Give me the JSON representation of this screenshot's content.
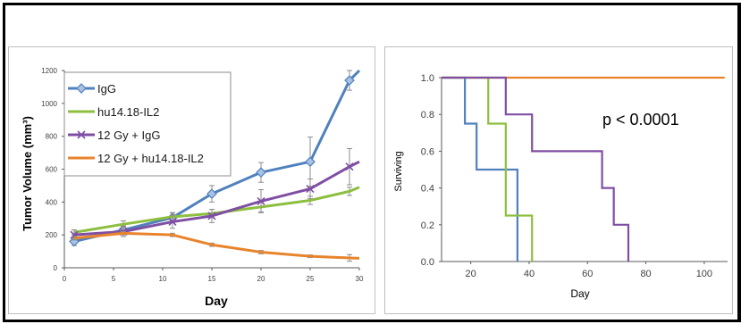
{
  "chart_data": [
    {
      "type": "line",
      "xlabel": "Day",
      "ylabel": "Tumor Volume (mm³)",
      "xlim": [
        0,
        30
      ],
      "ylim": [
        0,
        1200
      ],
      "xticks": [
        "0",
        "5",
        "10",
        "15",
        "20",
        "25",
        "30"
      ],
      "yticks": [
        "0",
        "200",
        "400",
        "600",
        "800",
        "1000",
        "1200"
      ],
      "legend_position": "top-left",
      "grid": false,
      "series": [
        {
          "name": "IgG",
          "color": "#4f81bd",
          "marker": "diamond",
          "x": [
            1,
            6,
            11,
            15,
            20,
            25,
            29,
            30
          ],
          "y": [
            160,
            230,
            305,
            450,
            580,
            645,
            1140,
            1200
          ],
          "err": [
            25,
            25,
            30,
            50,
            60,
            150,
            60,
            0
          ]
        },
        {
          "name": "hu14.18-IL2",
          "color": "#8dbf3f",
          "marker": "none",
          "x": [
            1,
            6,
            11,
            15,
            20,
            25,
            29,
            30
          ],
          "y": [
            215,
            265,
            310,
            330,
            370,
            410,
            465,
            490
          ],
          "err": [
            15,
            20,
            25,
            25,
            30,
            25,
            25,
            0
          ]
        },
        {
          "name": "12 Gy + IgG",
          "color": "#7f4fa3",
          "marker": "x",
          "x": [
            1,
            6,
            11,
            15,
            20,
            25,
            29,
            30
          ],
          "y": [
            200,
            220,
            280,
            315,
            405,
            480,
            615,
            645
          ],
          "err": [
            30,
            30,
            40,
            40,
            70,
            60,
            110,
            0
          ]
        },
        {
          "name": "12 Gy + hu14.18-IL2",
          "color": "#e8842c",
          "marker": "none",
          "x": [
            1,
            6,
            11,
            15,
            20,
            25,
            29,
            30
          ],
          "y": [
            180,
            210,
            200,
            140,
            95,
            70,
            60,
            58
          ],
          "err": [
            10,
            10,
            10,
            10,
            10,
            8,
            20,
            0
          ]
        }
      ]
    },
    {
      "type": "step",
      "xlabel": "Day",
      "ylabel": "Surviving",
      "xlim": [
        10,
        108
      ],
      "ylim": [
        0,
        1.0
      ],
      "xticks": [
        "20",
        "40",
        "60",
        "80",
        "100"
      ],
      "yticks": [
        "0.0",
        "0.2",
        "0.4",
        "0.6",
        "0.8",
        "1.0"
      ],
      "annotation": "p < 0.0001",
      "grid": false,
      "series": [
        {
          "color": "#e8842c",
          "x": [
            10,
            107
          ],
          "y": [
            1.0,
            1.0
          ]
        },
        {
          "color": "#4f81bd",
          "x": [
            10,
            18,
            18,
            22,
            22,
            36,
            36
          ],
          "y": [
            1.0,
            1.0,
            0.75,
            0.75,
            0.5,
            0.5,
            0.0
          ]
        },
        {
          "color": "#8dbf3f",
          "x": [
            10,
            26,
            26,
            32,
            32,
            41,
            41
          ],
          "y": [
            1.0,
            1.0,
            0.75,
            0.75,
            0.25,
            0.25,
            0.0
          ]
        },
        {
          "color": "#7f4fa3",
          "x": [
            10,
            32,
            32,
            41,
            41,
            65,
            65,
            69,
            69,
            74,
            74
          ],
          "y": [
            1.0,
            1.0,
            0.8,
            0.8,
            0.6,
            0.6,
            0.4,
            0.4,
            0.2,
            0.2,
            0.0
          ]
        }
      ]
    }
  ]
}
